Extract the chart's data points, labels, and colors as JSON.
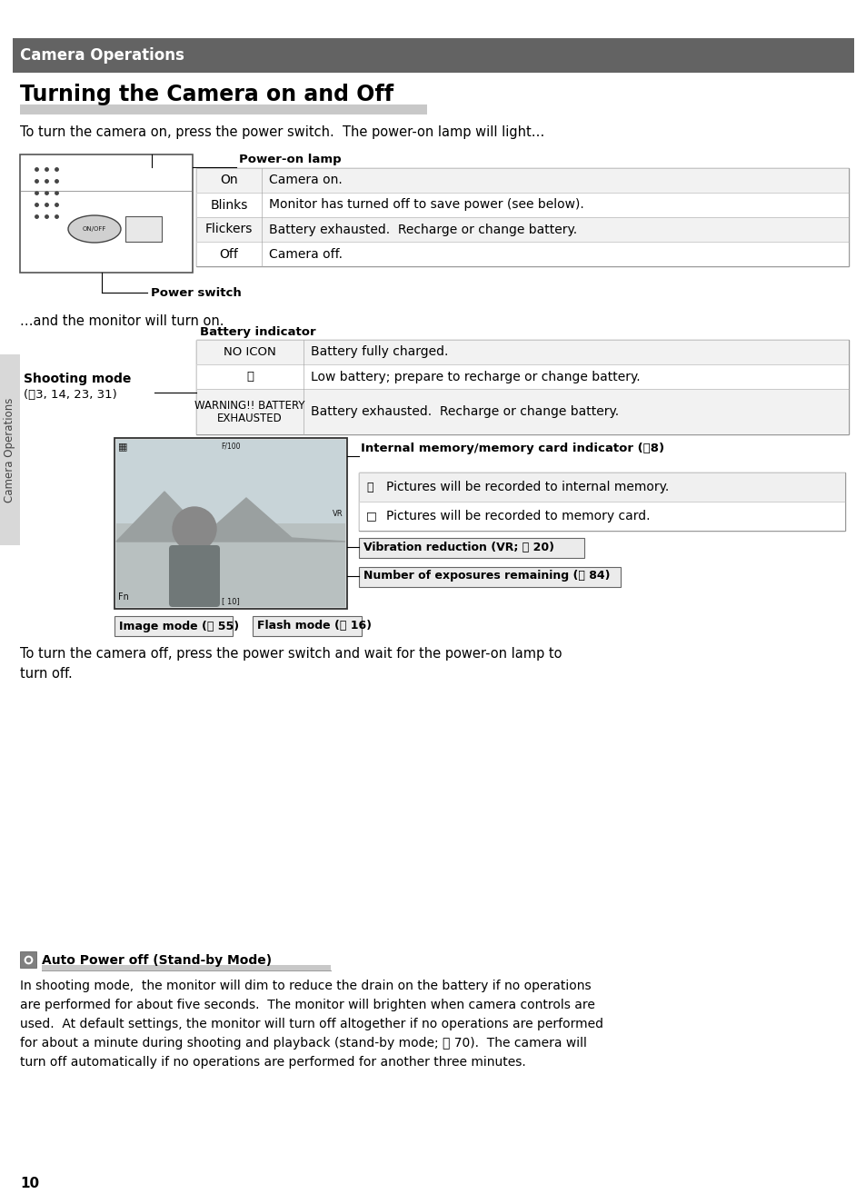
{
  "bg_color": "#ffffff",
  "header_bg": "#636363",
  "header_text": "Camera Operations",
  "header_text_color": "#ffffff",
  "title": "Turning the Camera on and Off",
  "intro_text": "To turn the camera on, press the power switch.  The power-on lamp will light…",
  "power_on_lamp_label": "Power-on lamp",
  "power_lamp_rows": [
    {
      "col1": "On",
      "col2": "Camera on."
    },
    {
      "col1": "Blinks",
      "col2": "Monitor has turned off to save power (see below)."
    },
    {
      "col1": "Flickers",
      "col2": "Battery exhausted.  Recharge or change battery."
    },
    {
      "col1": "Off",
      "col2": "Camera off."
    }
  ],
  "power_switch_label": "Power switch",
  "monitor_text": "…and the monitor will turn on.",
  "battery_indicator_label": "Battery indicator",
  "battery_rows": [
    {
      "col1": "NO ICON",
      "col2": "Battery fully charged."
    },
    {
      "col1": "⎓",
      "col2": "Low battery; prepare to recharge or change battery."
    },
    {
      "col1": "WARNING!! BATTERY\nEXHAUSTED",
      "col2": "Battery exhausted.  Recharge or change battery."
    }
  ],
  "shooting_mode_label1": "Shooting mode",
  "shooting_mode_label2": "(⑸3, 14, 23, 31)",
  "internal_memory_label": "Internal memory/memory card indicator (⑸8)",
  "internal_memory_rows": [
    {
      "col2": "Pictures will be recorded to internal memory."
    },
    {
      "col2": "Pictures will be recorded to memory card."
    }
  ],
  "vibration_label": "Vibration reduction (VR; ⑸ 20)",
  "exposures_label": "Number of exposures remaining (⑸ 84)",
  "image_mode_label": "Image mode (⑸ 55)",
  "flash_mode_label": "Flash mode (⑸ 16)",
  "turn_off_text1": "To turn the camera off, press the power switch and wait for the power-on lamp to",
  "turn_off_text2": "turn off.",
  "auto_power_title": "Auto Power off (Stand-by Mode)",
  "auto_power_lines": [
    "In shooting mode,  the monitor will dim to reduce the drain on the battery if no operations",
    "are performed for about five seconds.  The monitor will brighten when camera controls are",
    "used.  At default settings, the monitor will turn off altogether if no operations are performed",
    "for about a minute during shooting and playback (stand-by mode; ⑸ 70).  The camera will",
    "turn off automatically if no operations are performed for another three minutes."
  ],
  "page_number": "10",
  "sidebar_text": "Camera Operations"
}
